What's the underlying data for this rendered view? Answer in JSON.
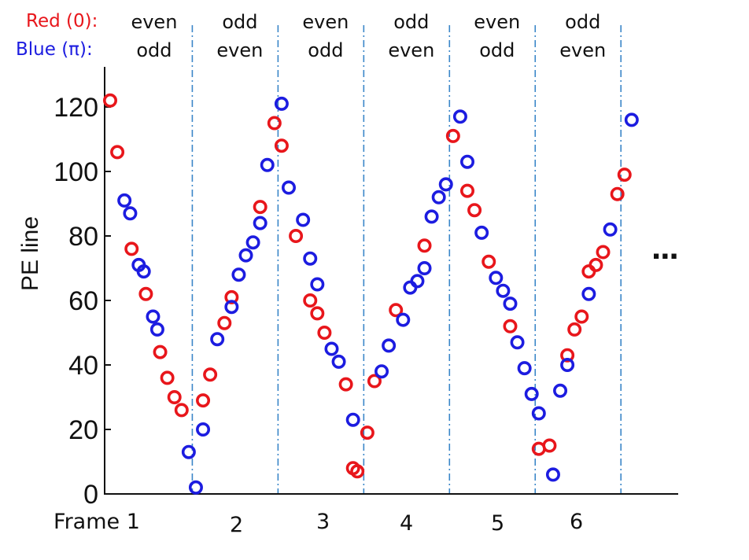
{
  "header": {
    "red_label": "Red (0):",
    "blue_label": "Blue (π):"
  },
  "parity": {
    "red_row": [
      "even",
      "odd",
      "even",
      "odd",
      "even",
      "odd"
    ],
    "blue_row": [
      "odd",
      "even",
      "odd",
      "even",
      "odd",
      "even"
    ]
  },
  "frames": [
    "Frame 1",
    "2",
    "3",
    "4",
    "5",
    "6"
  ],
  "ellipsis": "...",
  "chart_data": {
    "type": "scatter",
    "title": "",
    "xlabel": "",
    "ylabel": "PE line",
    "ylim": [
      0,
      128
    ],
    "xlim": [
      0.5,
      76
    ],
    "y_ticks": [
      0,
      20,
      40,
      60,
      80,
      100,
      120
    ],
    "frame_boundaries": [
      12.5,
      24.5,
      36.5,
      48.5,
      60.5,
      72.5
    ],
    "series": [
      {
        "name": "Red (0)",
        "color": "#e8161b",
        "points": [
          [
            1,
            122
          ],
          [
            2,
            106
          ],
          [
            4,
            76
          ],
          [
            6,
            62
          ],
          [
            8,
            44
          ],
          [
            9,
            36
          ],
          [
            10,
            30
          ],
          [
            11,
            26
          ],
          [
            14,
            29
          ],
          [
            15,
            37
          ],
          [
            17,
            53
          ],
          [
            18,
            61
          ],
          [
            22,
            89
          ],
          [
            24,
            115
          ],
          [
            25,
            108
          ],
          [
            27,
            80
          ],
          [
            29,
            60
          ],
          [
            30,
            56
          ],
          [
            31,
            50
          ],
          [
            34,
            34
          ],
          [
            35,
            8
          ],
          [
            35.6,
            7
          ],
          [
            37,
            19
          ],
          [
            38,
            35
          ],
          [
            41,
            57
          ],
          [
            45,
            77
          ],
          [
            49,
            111
          ],
          [
            51,
            94
          ],
          [
            52,
            88
          ],
          [
            54,
            72
          ],
          [
            57,
            52
          ],
          [
            61,
            14
          ],
          [
            62.5,
            15
          ],
          [
            65,
            43
          ],
          [
            66,
            51
          ],
          [
            67,
            55
          ],
          [
            68,
            69
          ],
          [
            69,
            71
          ],
          [
            70,
            75
          ],
          [
            72,
            93
          ],
          [
            73,
            99
          ]
        ]
      },
      {
        "name": "Blue (π)",
        "color": "#1c1ce0",
        "points": [
          [
            3,
            91
          ],
          [
            3.8,
            87
          ],
          [
            5,
            71
          ],
          [
            5.7,
            69
          ],
          [
            7,
            55
          ],
          [
            7.6,
            51
          ],
          [
            12,
            13
          ],
          [
            13,
            2
          ],
          [
            14,
            20
          ],
          [
            16,
            48
          ],
          [
            18,
            58
          ],
          [
            19,
            68
          ],
          [
            20,
            74
          ],
          [
            21,
            78
          ],
          [
            22,
            84
          ],
          [
            23,
            102
          ],
          [
            25,
            121
          ],
          [
            26,
            95
          ],
          [
            28,
            85
          ],
          [
            29,
            73
          ],
          [
            30,
            65
          ],
          [
            32,
            45
          ],
          [
            33,
            41
          ],
          [
            35,
            23
          ],
          [
            39,
            38
          ],
          [
            40,
            46
          ],
          [
            42,
            54
          ],
          [
            43,
            64
          ],
          [
            44,
            66
          ],
          [
            45,
            70
          ],
          [
            46,
            86
          ],
          [
            47,
            92
          ],
          [
            48,
            96
          ],
          [
            50,
            117
          ],
          [
            51,
            103
          ],
          [
            53,
            81
          ],
          [
            55,
            67
          ],
          [
            56,
            63
          ],
          [
            57,
            59
          ],
          [
            58,
            47
          ],
          [
            59,
            39
          ],
          [
            60,
            31
          ],
          [
            61,
            25
          ],
          [
            63,
            6
          ],
          [
            64,
            32
          ],
          [
            65,
            40
          ],
          [
            68,
            62
          ],
          [
            71,
            82
          ],
          [
            74,
            116
          ]
        ]
      }
    ]
  }
}
